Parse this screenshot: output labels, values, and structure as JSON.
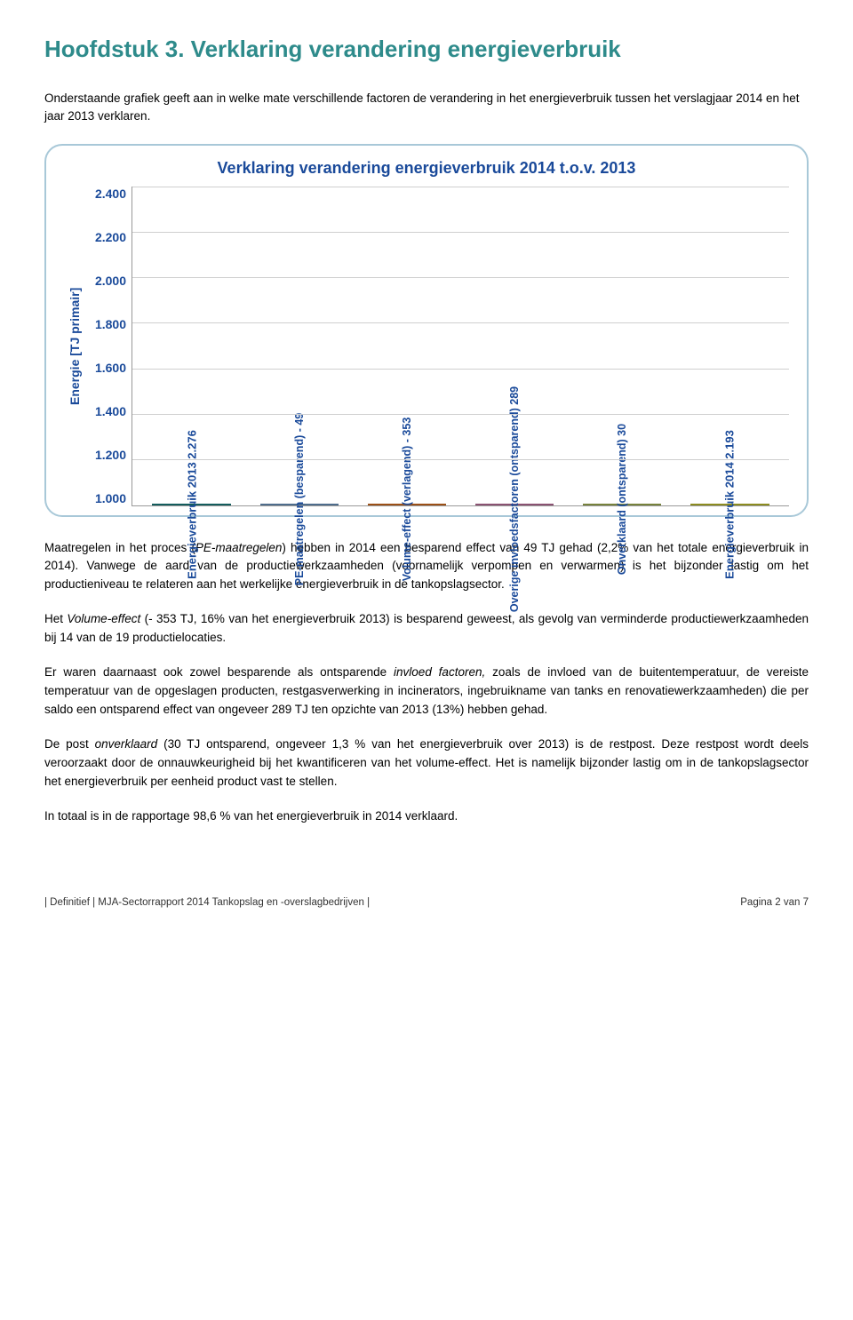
{
  "heading": "Hoofdstuk 3. Verklaring verandering energieverbruik",
  "intro": "Onderstaande grafiek geeft aan in welke mate verschillende factoren de verandering in het energieverbruik tussen het verslagjaar 2014 en het jaar 2013 verklaren.",
  "chart": {
    "type": "waterfall",
    "title": "Verklaring verandering energieverbruik 2014 t.o.v. 2013",
    "y_axis_label": "Energie [TJ primair]",
    "y_min": 1000,
    "y_max": 2400,
    "y_tick_step": 200,
    "y_ticks": [
      "2.400",
      "2.200",
      "2.000",
      "1.800",
      "1.600",
      "1.400",
      "1.200",
      "1.000"
    ],
    "grid_color": "#cfcfcf",
    "background_color": "#ffffff",
    "title_color": "#1a4a9a",
    "label_color": "#1a4a9a",
    "start_value": 2276,
    "bars": [
      {
        "kind": "total",
        "label": "Energieverbruik 2013  2.276",
        "value": 2276,
        "color": "#1f8f8f"
      },
      {
        "kind": "delta",
        "label": "PE-maatregelen (besparend)  - 49",
        "delta": -49,
        "color": "#7aa8d8",
        "marker_color": "#cfe1f0"
      },
      {
        "kind": "delta",
        "label": "Volume-effect (verlagend)  - 353",
        "delta": -353,
        "color": "#ef7b24",
        "marker_color": "#f6c9a4"
      },
      {
        "kind": "delta",
        "label": "Overige invloedsfactoren (ontsparend)  289",
        "delta": 289,
        "color": "#d47fb0",
        "marker_color": "#ecd0e0"
      },
      {
        "kind": "delta",
        "label": "Onverklaard (ontsparend)    30",
        "delta": 30,
        "color": "#b7c85f",
        "marker_color": "#e9eec8"
      },
      {
        "kind": "total",
        "label": "Energieverbruik 2014  2.193",
        "value": 2193,
        "color": "#d8d832"
      }
    ]
  },
  "paragraphs": {
    "p1a": "Maatregelen in het proces (",
    "p1b": "PE-maatregelen",
    "p1c": ") hebben in 2014 een besparend effect van 49 TJ gehad (2,2% van het totale energieverbruik in 2014). Vanwege de aard van de productiewerkzaamheden (voornamelijk verpompen en verwarmen) is het bijzonder lastig om het productieniveau te relateren aan het werkelijke energieverbruik in de tankopslagsector.",
    "p2a": "Het ",
    "p2b": "Volume-effect",
    "p2c": " (- 353 TJ, 16% van het energieverbruik 2013) is besparend geweest, als gevolg van verminderde productiewerkzaamheden bij  14 van de 19 productielocaties.",
    "p3a": "Er waren daarnaast ook zowel besparende als ontsparende ",
    "p3b": "invloed factoren,",
    "p3c": " zoals de invloed van de buitentemperatuur, de vereiste temperatuur van de opgeslagen producten, restgasverwerking in incinerators, ingebruikname van tanks en renovatiewerkzaamheden) die per saldo een ontsparend effect van ongeveer 289 TJ ten opzichte van 2013 (13%) hebben gehad.",
    "p4a": "De post ",
    "p4b": "onverklaard",
    "p4c": " (30 TJ ontsparend, ongeveer 1,3 % van het energieverbruik over 2013) is de restpost. Deze restpost wordt deels veroorzaakt door de onnauwkeurigheid bij het kwantificeren van het volume-effect. Het is namelijk bijzonder lastig om in de tankopslagsector het energieverbruik per eenheid product vast te stellen.",
    "p5": "In totaal is in de rapportage 98,6 % van het energieverbruik in 2014 verklaard."
  },
  "footer": {
    "left": "| Definitief | MJA-Sectorrapport 2014 Tankopslag en -overslagbedrijven |",
    "right": "Pagina 2 van 7"
  }
}
